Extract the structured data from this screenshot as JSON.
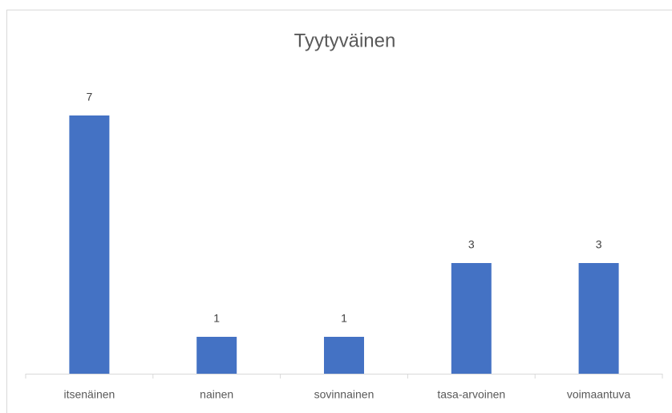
{
  "chart_data": {
    "type": "bar",
    "title": "Tyytyväinen",
    "categories": [
      "itsenäinen",
      "nainen",
      "sovinnainen",
      "tasa-arvoinen",
      "voimaantuva"
    ],
    "values": [
      7,
      1,
      1,
      3,
      3
    ],
    "color": "#4472c4",
    "ylim": [
      0,
      8
    ],
    "grid": false
  }
}
